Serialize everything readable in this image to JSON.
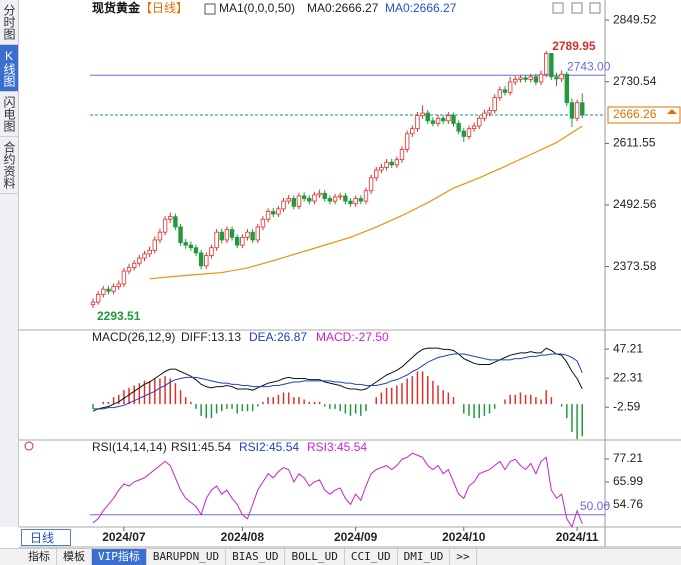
{
  "sidebar": {
    "tabs": [
      "分时图",
      "K线图",
      "闪电图",
      "合约资料"
    ],
    "active": 1
  },
  "period_button": "日线",
  "bottom_tabs": {
    "tabs": [
      "指标",
      "模板",
      "VIP指标",
      "BARUPDN_UD",
      "BIAS_UD",
      "BOLL_UD",
      "CCI_UD",
      "DMI_UD",
      ">>"
    ],
    "active": 2
  },
  "chart_data": [
    {
      "type": "candlestick",
      "title": "现货黄金",
      "period": "【日线】",
      "indicator": "MA1(0,0,0,50)",
      "legend": [
        {
          "text": "MA0:2666.27",
          "color": "#222222"
        },
        {
          "text": "MA0:2666.27",
          "color": "#2850c8"
        }
      ],
      "up_color": "#e0302a",
      "down_color": "#1f9a3c",
      "ohlc": [
        [
          2300,
          2312,
          2293.51,
          2305
        ],
        [
          2305,
          2326,
          2300,
          2320
        ],
        [
          2320,
          2336,
          2314,
          2330
        ],
        [
          2330,
          2337,
          2320,
          2326
        ],
        [
          2326,
          2341,
          2320,
          2335
        ],
        [
          2335,
          2347,
          2329,
          2340
        ],
        [
          2340,
          2371,
          2334,
          2365
        ],
        [
          2365,
          2379,
          2359,
          2372
        ],
        [
          2372,
          2386,
          2366,
          2380
        ],
        [
          2380,
          2396,
          2374,
          2390
        ],
        [
          2390,
          2404,
          2384,
          2398
        ],
        [
          2398,
          2412,
          2392,
          2405
        ],
        [
          2405,
          2432,
          2399,
          2425
        ],
        [
          2425,
          2447,
          2419,
          2440
        ],
        [
          2440,
          2471,
          2434,
          2465
        ],
        [
          2465,
          2478,
          2458,
          2470
        ],
        [
          2470,
          2476,
          2444,
          2450
        ],
        [
          2450,
          2456,
          2414,
          2420
        ],
        [
          2420,
          2427,
          2408,
          2415
        ],
        [
          2415,
          2422,
          2404,
          2410
        ],
        [
          2410,
          2416,
          2394,
          2400
        ],
        [
          2400,
          2406,
          2368,
          2375
        ],
        [
          2375,
          2401,
          2369,
          2395
        ],
        [
          2395,
          2416,
          2389,
          2410
        ],
        [
          2410,
          2446,
          2404,
          2440
        ],
        [
          2440,
          2447,
          2418,
          2425
        ],
        [
          2425,
          2451,
          2419,
          2445
        ],
        [
          2445,
          2451,
          2424,
          2430
        ],
        [
          2430,
          2436,
          2409,
          2415
        ],
        [
          2415,
          2436,
          2409,
          2430
        ],
        [
          2430,
          2446,
          2424,
          2440
        ],
        [
          2440,
          2446,
          2419,
          2425
        ],
        [
          2425,
          2456,
          2419,
          2450
        ],
        [
          2450,
          2471,
          2444,
          2465
        ],
        [
          2465,
          2486,
          2459,
          2480
        ],
        [
          2480,
          2487,
          2469,
          2475
        ],
        [
          2475,
          2491,
          2469,
          2485
        ],
        [
          2485,
          2506,
          2479,
          2500
        ],
        [
          2500,
          2512,
          2494,
          2505
        ],
        [
          2505,
          2511,
          2484,
          2490
        ],
        [
          2490,
          2516,
          2484,
          2510
        ],
        [
          2510,
          2517,
          2499,
          2505
        ],
        [
          2505,
          2511,
          2494,
          2500
        ],
        [
          2500,
          2518,
          2494,
          2512
        ],
        [
          2512,
          2522,
          2506,
          2515
        ],
        [
          2515,
          2521,
          2499,
          2505
        ],
        [
          2505,
          2511,
          2494,
          2500
        ],
        [
          2500,
          2514,
          2494,
          2508
        ],
        [
          2508,
          2516,
          2502,
          2510
        ],
        [
          2510,
          2516,
          2494,
          2500
        ],
        [
          2500,
          2506,
          2489,
          2495
        ],
        [
          2495,
          2511,
          2489,
          2505
        ],
        [
          2505,
          2511,
          2494,
          2500
        ],
        [
          2500,
          2526,
          2494,
          2520
        ],
        [
          2520,
          2551,
          2514,
          2545
        ],
        [
          2545,
          2566,
          2539,
          2560
        ],
        [
          2560,
          2572,
          2554,
          2565
        ],
        [
          2565,
          2581,
          2559,
          2575
        ],
        [
          2575,
          2582,
          2564,
          2570
        ],
        [
          2570,
          2586,
          2564,
          2580
        ],
        [
          2580,
          2606,
          2574,
          2600
        ],
        [
          2600,
          2636,
          2594,
          2630
        ],
        [
          2630,
          2646,
          2624,
          2640
        ],
        [
          2640,
          2672,
          2634,
          2665
        ],
        [
          2665,
          2685,
          2659,
          2670
        ],
        [
          2670,
          2676,
          2649,
          2655
        ],
        [
          2655,
          2662,
          2644,
          2650
        ],
        [
          2650,
          2667,
          2644,
          2660
        ],
        [
          2660,
          2666,
          2649,
          2655
        ],
        [
          2655,
          2672,
          2649,
          2665
        ],
        [
          2665,
          2671,
          2644,
          2650
        ],
        [
          2650,
          2656,
          2629,
          2635
        ],
        [
          2635,
          2641,
          2614,
          2625
        ],
        [
          2625,
          2646,
          2619,
          2640
        ],
        [
          2640,
          2652,
          2634,
          2645
        ],
        [
          2645,
          2666,
          2639,
          2660
        ],
        [
          2660,
          2677,
          2654,
          2670
        ],
        [
          2670,
          2682,
          2664,
          2675
        ],
        [
          2675,
          2706,
          2669,
          2700
        ],
        [
          2700,
          2721,
          2694,
          2715
        ],
        [
          2715,
          2722,
          2704,
          2710
        ],
        [
          2710,
          2740,
          2704,
          2730
        ],
        [
          2730,
          2741,
          2724,
          2735
        ],
        [
          2735,
          2744,
          2729,
          2738
        ],
        [
          2738,
          2744,
          2729,
          2735
        ],
        [
          2735,
          2746,
          2729,
          2740
        ],
        [
          2740,
          2746,
          2724,
          2730
        ],
        [
          2730,
          2752,
          2724,
          2745
        ],
        [
          2745,
          2789.95,
          2739,
          2785
        ],
        [
          2785,
          2786,
          2734,
          2740
        ],
        [
          2740,
          2748,
          2722,
          2736
        ],
        [
          2736,
          2752,
          2730,
          2745
        ],
        [
          2745,
          2750,
          2683,
          2690
        ],
        [
          2690,
          2698,
          2643,
          2660
        ],
        [
          2660,
          2696,
          2654,
          2690
        ],
        [
          2690,
          2708,
          2660,
          2666.26
        ]
      ],
      "ma": {
        "color": "#f0900a",
        "x": [
          11,
          15,
          20,
          25,
          30,
          35,
          40,
          45,
          50,
          55,
          60,
          65,
          70,
          75,
          80,
          85,
          90,
          95
        ],
        "values": [
          2350,
          2354,
          2358,
          2362,
          2371,
          2385,
          2400,
          2415,
          2430,
          2450,
          2472,
          2497,
          2525,
          2545,
          2567,
          2590,
          2613,
          2645
        ]
      },
      "ylim": [
        2255,
        2869
      ],
      "yticks": [
        2849.52,
        2730.54,
        2611.55,
        2492.56,
        2373.58
      ],
      "ref_line": {
        "value": 2743,
        "label": "2743.00",
        "color": "#6a6ae6"
      },
      "last_price": {
        "value": 2666.26,
        "color": "#1a8a9a",
        "label_color": "#e07000"
      },
      "high": {
        "value": 2789.95,
        "color": "#d03030"
      },
      "low": {
        "value": 2293.51,
        "color": "#1f9a3c"
      }
    },
    {
      "type": "macd",
      "title": "MACD(26,12,9)",
      "legend": [
        {
          "text": "DIFF:13.13",
          "color": "#222222"
        },
        {
          "text": "DEA:26.87",
          "color": "#2040c0"
        },
        {
          "text": "MACD:-27.50",
          "color": "#d020d0"
        }
      ],
      "series": [
        {
          "color": "#111111",
          "values": [
            -6,
            -4,
            -3,
            -2,
            0,
            2,
            5,
            8,
            11,
            14,
            17,
            19,
            22,
            25,
            28,
            30,
            30,
            28,
            26,
            24,
            21,
            17,
            15,
            14,
            15,
            15,
            16,
            15,
            13,
            13,
            13,
            12,
            14,
            16,
            18,
            19,
            20,
            22,
            23,
            22,
            22,
            22,
            21,
            21,
            21,
            19,
            18,
            17,
            16,
            14,
            13,
            13,
            12,
            13,
            16,
            19,
            22,
            25,
            27,
            29,
            32,
            36,
            40,
            44,
            47,
            48,
            48,
            48,
            47,
            47,
            46,
            43,
            39,
            37,
            35,
            34,
            34,
            34,
            36,
            38,
            40,
            42,
            43,
            44,
            44,
            45,
            44,
            44,
            48,
            46,
            43,
            42,
            36,
            28,
            22,
            13.13
          ]
        },
        {
          "color": "#2040c0",
          "values": [
            -4,
            -4,
            -4,
            -3,
            -3,
            -2,
            -1,
            1,
            3,
            5,
            7,
            9,
            11,
            14,
            16,
            19,
            21,
            22,
            23,
            23,
            23,
            22,
            21,
            20,
            19,
            18,
            18,
            17,
            17,
            16,
            16,
            15,
            15,
            15,
            15,
            16,
            16,
            17,
            18,
            19,
            19,
            20,
            20,
            20,
            20,
            20,
            20,
            19,
            19,
            18,
            18,
            17,
            17,
            16,
            16,
            16,
            17,
            18,
            20,
            21,
            23,
            25,
            28,
            30,
            33,
            36,
            38,
            40,
            41,
            42,
            43,
            43,
            43,
            42,
            41,
            40,
            39,
            38,
            38,
            38,
            38,
            38,
            39,
            39,
            40,
            41,
            41,
            42,
            42,
            43,
            43,
            43,
            42,
            40,
            37,
            26.87
          ]
        }
      ],
      "histogram": {
        "up_color": "#e0302a",
        "down_color": "#1f9a3c",
        "values": [
          -4,
          0,
          2,
          2,
          6,
          8,
          12,
          14,
          16,
          18,
          20,
          20,
          22,
          22,
          24,
          22,
          18,
          12,
          6,
          2,
          -4,
          -10,
          -12,
          -12,
          -8,
          -6,
          -4,
          -4,
          -8,
          -6,
          -6,
          -6,
          -2,
          2,
          6,
          6,
          8,
          10,
          10,
          6,
          6,
          4,
          2,
          2,
          2,
          -2,
          -4,
          -4,
          -6,
          -8,
          -10,
          -8,
          -10,
          -6,
          0,
          6,
          10,
          14,
          14,
          16,
          18,
          22,
          24,
          28,
          28,
          24,
          20,
          16,
          12,
          10,
          6,
          0,
          -8,
          -10,
          -12,
          -12,
          -10,
          -8,
          -4,
          0,
          4,
          8,
          8,
          10,
          8,
          8,
          6,
          4,
          12,
          6,
          0,
          -2,
          -12,
          -24,
          -30,
          -27.5
        ]
      },
      "ylim": [
        -29,
        61
      ],
      "yticks": [
        47.21,
        22.31,
        -2.59
      ]
    },
    {
      "type": "rsi",
      "title": "RSI(14,14,14)",
      "legend": [
        {
          "text": "RSI1:45.54",
          "color": "#222222"
        },
        {
          "text": "RSI2:45.54",
          "color": "#2040c0"
        },
        {
          "text": "RSI3:45.54",
          "color": "#d020d0"
        }
      ],
      "series": [
        {
          "color": "#cc22cc",
          "values": [
            46,
            48,
            52,
            55,
            58,
            62,
            65,
            64,
            66,
            67,
            68,
            70,
            72,
            74,
            76,
            74,
            68,
            62,
            58,
            56,
            54,
            50,
            58,
            62,
            64,
            60,
            62,
            58,
            55,
            50,
            48,
            55,
            62,
            66,
            70,
            68,
            71,
            73,
            72,
            66,
            70,
            68,
            64,
            66,
            67,
            62,
            60,
            62,
            63,
            58,
            55,
            60,
            57,
            64,
            70,
            72,
            73,
            74,
            72,
            74,
            77,
            78,
            80,
            79,
            78,
            74,
            72,
            74,
            70,
            72,
            66,
            60,
            58,
            64,
            66,
            70,
            71,
            72,
            74,
            76,
            72,
            76,
            77,
            74,
            72,
            75,
            70,
            76,
            78,
            62,
            58,
            60,
            48,
            44,
            52,
            45.54
          ]
        }
      ],
      "ref_line": {
        "value": 50,
        "label": "50.00",
        "color": "#6a6ae6"
      },
      "ylim": [
        44,
        84
      ],
      "yticks": [
        77.21,
        65.99,
        54.76
      ],
      "xticks": [
        {
          "value": 6,
          "label": "2024/07"
        },
        {
          "value": 29,
          "label": "2024/08"
        },
        {
          "value": 51,
          "label": "2024/09"
        },
        {
          "value": 72,
          "label": "2024/10"
        },
        {
          "value": 94,
          "label": "2024/11"
        }
      ]
    }
  ]
}
